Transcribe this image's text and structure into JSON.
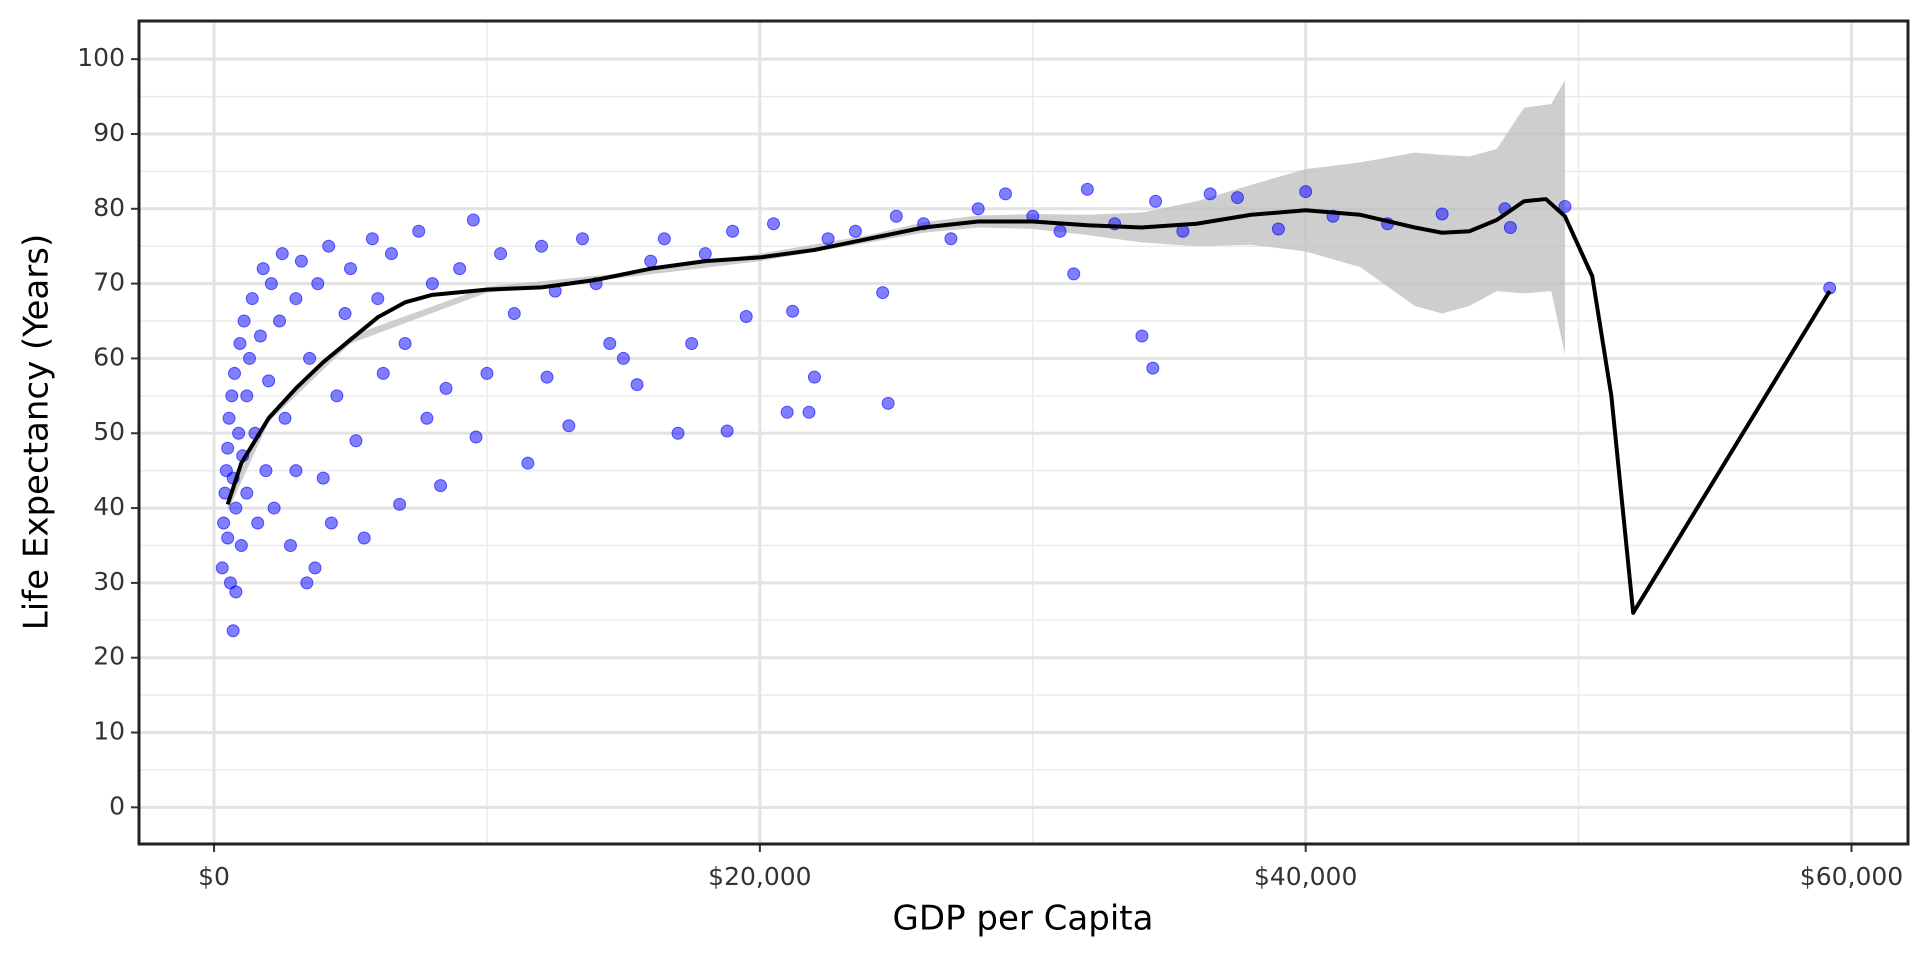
{
  "chart_data": {
    "type": "scatter",
    "x_label": "GDP per Capita",
    "y_label": "Life Expectancy (Years)",
    "xlim": [
      -2750,
      62070
    ],
    "ylim": [
      -4.9,
      105.1
    ],
    "xticks": [
      {
        "value": 0,
        "label": "$0"
      },
      {
        "value": 20000,
        "label": "$20,000"
      },
      {
        "value": 40000,
        "label": "$40,000"
      },
      {
        "value": 60000,
        "label": "$60,000"
      }
    ],
    "yticks": [
      0,
      10,
      20,
      30,
      40,
      50,
      60,
      70,
      80,
      90,
      100
    ],
    "x_minor_ticks": [
      10000,
      30000,
      50000
    ],
    "y_minor_ticks": [
      5,
      15,
      25,
      35,
      45,
      55,
      65,
      75,
      85,
      95
    ],
    "grid": true,
    "points": {
      "color": "#0000ff",
      "x": [
        300,
        350,
        400,
        450,
        500,
        500,
        550,
        600,
        650,
        700,
        700,
        750,
        800,
        800,
        900,
        950,
        1000,
        1050,
        1100,
        1200,
        1200,
        1300,
        1400,
        1500,
        1600,
        1700,
        1800,
        1900,
        2000,
        2100,
        2200,
        2400,
        2500,
        2600,
        2800,
        3000,
        3000,
        3200,
        3400,
        3500,
        3700,
        3800,
        4000,
        4200,
        4300,
        4500,
        4800,
        5000,
        5200,
        5500,
        5800,
        6000,
        6200,
        6500,
        6800,
        7000,
        7500,
        7800,
        8000,
        8300,
        8500,
        9000,
        9500,
        9600,
        10000,
        10500,
        11000,
        11500,
        12000,
        12200,
        12500,
        13000,
        13500,
        14000,
        14500,
        15000,
        15500,
        16000,
        16500,
        17000,
        17500,
        18000,
        18800,
        19000,
        19500,
        20500,
        21000,
        21200,
        21800,
        22000,
        22500,
        23500,
        24500,
        24700,
        25000,
        26000,
        27000,
        28000,
        29000,
        30000,
        31000,
        31500,
        32000,
        33000,
        34000,
        34400,
        34500,
        35500,
        36500,
        37500,
        39000,
        40000,
        41000,
        43000,
        45000,
        47300,
        47500,
        49500,
        59200
      ],
      "values": [
        32,
        38,
        42,
        45,
        48,
        36,
        52,
        30,
        55,
        44,
        23.6,
        58,
        40,
        28.8,
        50,
        62,
        35,
        47,
        65,
        55,
        42,
        60,
        68,
        50,
        38,
        63,
        72,
        45,
        57,
        70,
        40,
        65,
        74,
        52,
        35,
        68,
        45,
        73,
        30,
        60,
        32,
        70,
        44,
        75,
        38,
        55,
        66,
        72,
        49,
        36,
        76,
        68,
        58,
        74,
        40.5,
        62,
        77,
        52,
        70,
        43,
        56,
        72,
        78.5,
        49.5,
        58,
        74,
        66,
        46,
        75,
        57.5,
        69,
        51,
        76,
        70,
        62,
        60,
        56.5,
        73,
        76,
        50,
        62,
        74,
        50.3,
        77,
        65.6,
        78,
        52.8,
        66.3,
        52.8,
        57.5,
        76,
        77,
        68.8,
        54,
        79,
        78,
        76,
        80,
        82,
        79,
        77,
        71.3,
        82.6,
        78,
        63,
        58.7,
        81,
        77,
        82,
        81.5,
        77.3,
        82.3,
        79,
        78,
        79.3,
        80,
        77.5,
        80.3,
        69.4
      ]
    },
    "line": {
      "color": "#000000",
      "x": [
        500,
        1000,
        2000,
        3000,
        4000,
        5000,
        6000,
        7000,
        8000,
        10000,
        12000,
        14000,
        16000,
        18000,
        20000,
        22000,
        24000,
        26000,
        28000,
        30000,
        32000,
        34000,
        36000,
        38000,
        40000,
        42000,
        44000,
        45000,
        46000,
        47000,
        48000,
        48800,
        49500,
        50500,
        51200,
        52000,
        59200
      ],
      "values": [
        40.5,
        46,
        52,
        56,
        59.5,
        62.5,
        65.5,
        67.5,
        68.5,
        69.2,
        69.5,
        70.5,
        72,
        73,
        73.5,
        74.5,
        76,
        77.5,
        78.3,
        78.3,
        77.8,
        77.5,
        78,
        79.2,
        79.8,
        79.2,
        77.5,
        76.8,
        77,
        78.5,
        81,
        81.3,
        79,
        71,
        55,
        26,
        69
      ]
    },
    "band": {
      "color": "#bebebe",
      "x": [
        500,
        2000,
        5000,
        10000,
        15000,
        20000,
        24000,
        26000,
        28000,
        30000,
        32000,
        34000,
        36000,
        38000,
        40000,
        42000,
        44000,
        45000,
        46000,
        47000,
        48000,
        49000,
        49500
      ],
      "lower": [
        39.5,
        51.5,
        62,
        68.8,
        70.8,
        73,
        75.5,
        76.8,
        77.5,
        77.3,
        76.5,
        75.5,
        75,
        75.2,
        74.3,
        72.2,
        67,
        66,
        67,
        69,
        68.7,
        69,
        60.5
      ],
      "upper": [
        41.5,
        52.5,
        63,
        69.6,
        71.4,
        74,
        76.5,
        78.2,
        79.1,
        79.3,
        79.2,
        79.5,
        81,
        83.2,
        85.3,
        86.2,
        87.5,
        87.2,
        87,
        88,
        93.5,
        94,
        97.2
      ]
    }
  }
}
